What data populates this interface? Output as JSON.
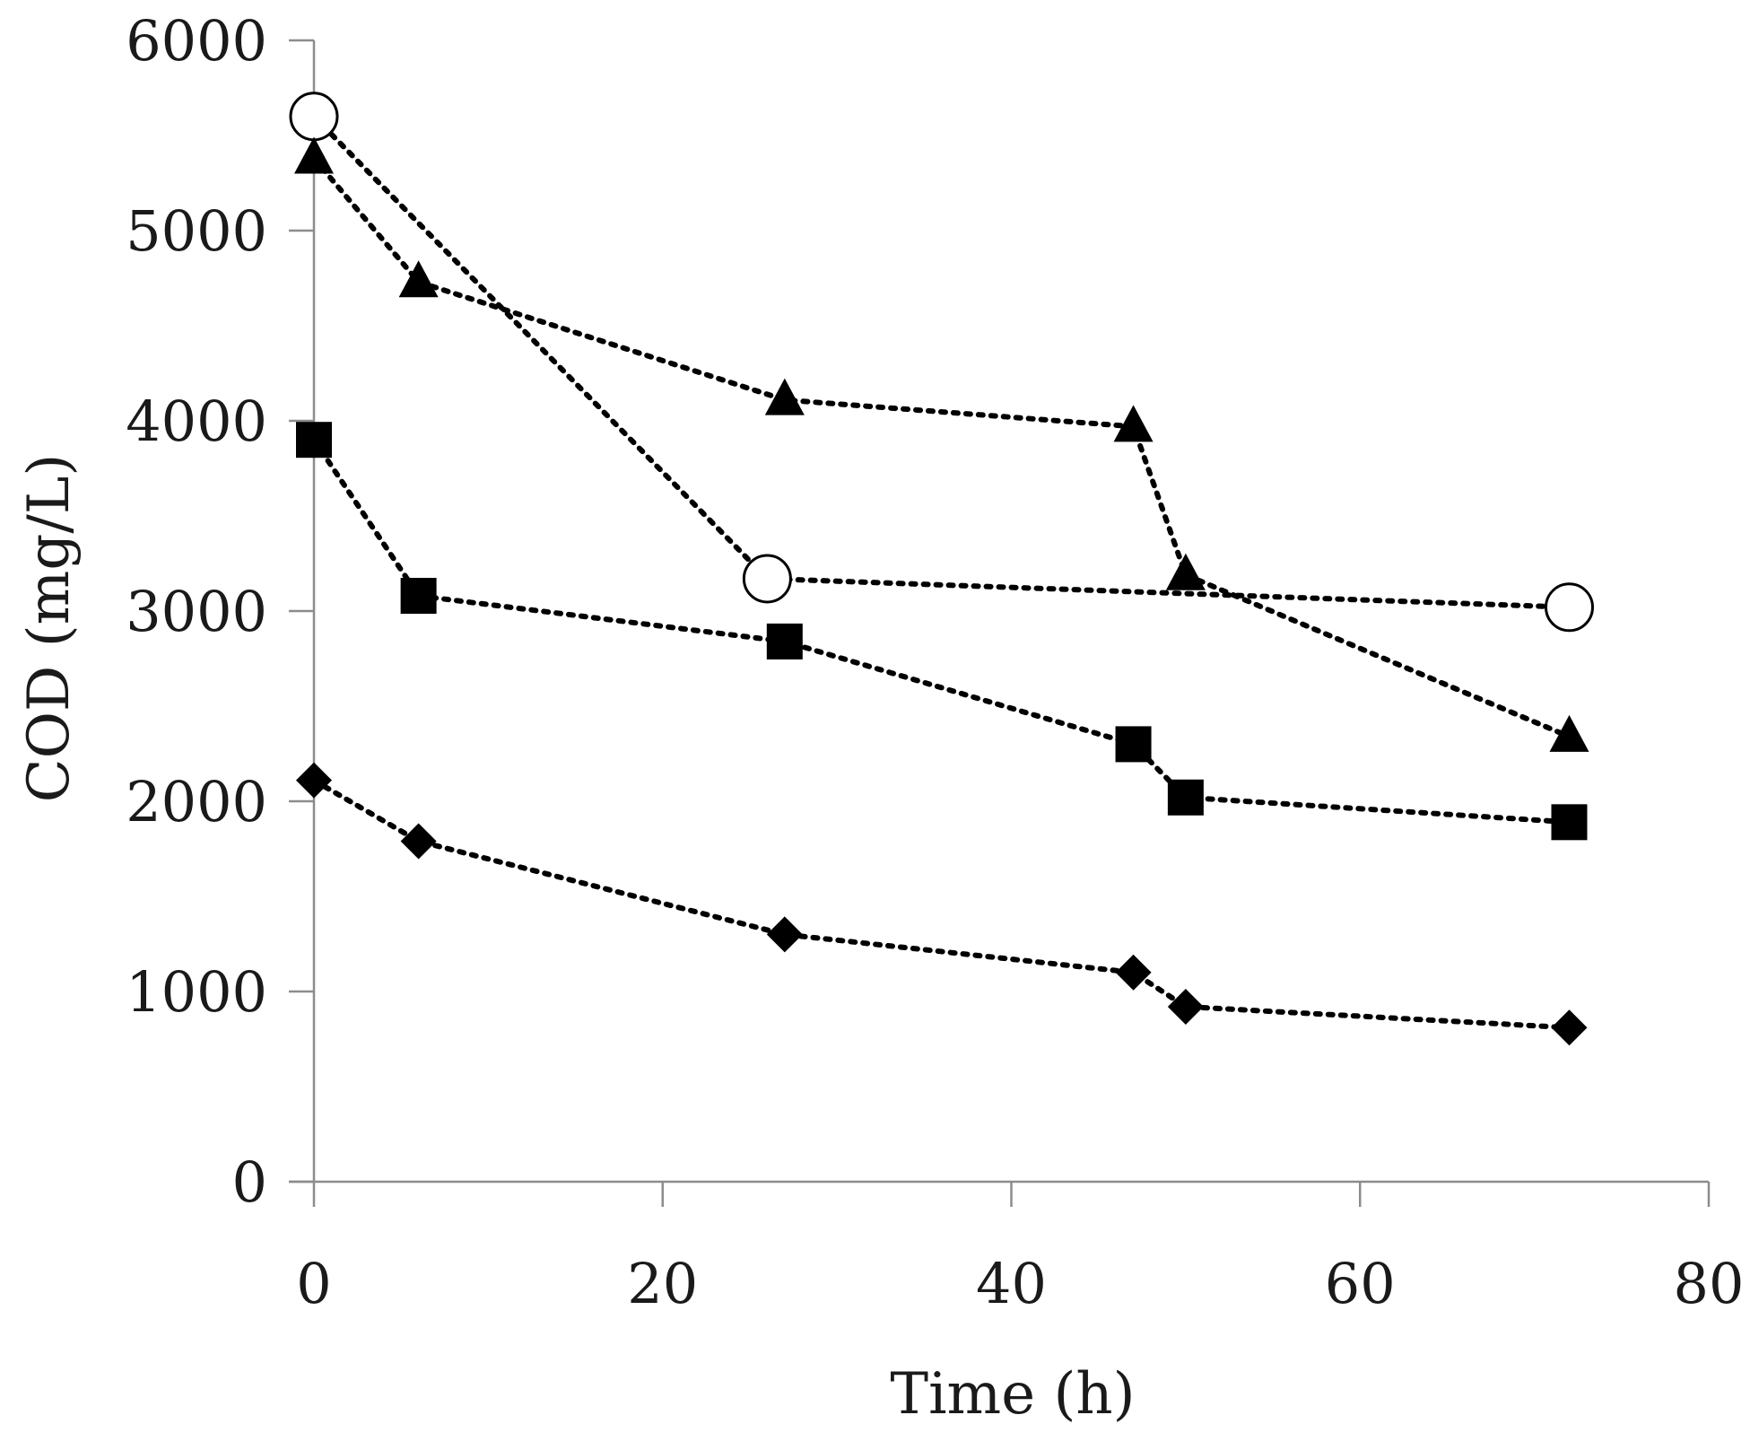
{
  "chart_data": {
    "type": "scatter",
    "title": "",
    "xlabel": "Time (h)",
    "ylabel": "COD (mg/L)",
    "xlim": [
      0,
      80
    ],
    "ylim": [
      0,
      6000
    ],
    "xticks": [
      0,
      20,
      40,
      60,
      80
    ],
    "yticks": [
      0,
      1000,
      2000,
      3000,
      4000,
      5000,
      6000
    ],
    "grid": false,
    "line_style": "dotted",
    "series": [
      {
        "name": "open-circle",
        "marker": "circle-open",
        "x": [
          0,
          26,
          72
        ],
        "y": [
          5600,
          3170,
          3020
        ]
      },
      {
        "name": "triangle",
        "marker": "triangle",
        "x": [
          0,
          6,
          27,
          47,
          50,
          72
        ],
        "y": [
          5380,
          4730,
          4110,
          3970,
          3190,
          2340
        ]
      },
      {
        "name": "square",
        "marker": "square",
        "x": [
          0,
          6,
          27,
          47,
          50,
          72
        ],
        "y": [
          3900,
          3080,
          2840,
          2300,
          2020,
          1890
        ]
      },
      {
        "name": "diamond",
        "marker": "diamond",
        "x": [
          0,
          6,
          27,
          47,
          50,
          72
        ],
        "y": [
          2110,
          1790,
          1300,
          1100,
          920,
          810
        ]
      }
    ]
  }
}
